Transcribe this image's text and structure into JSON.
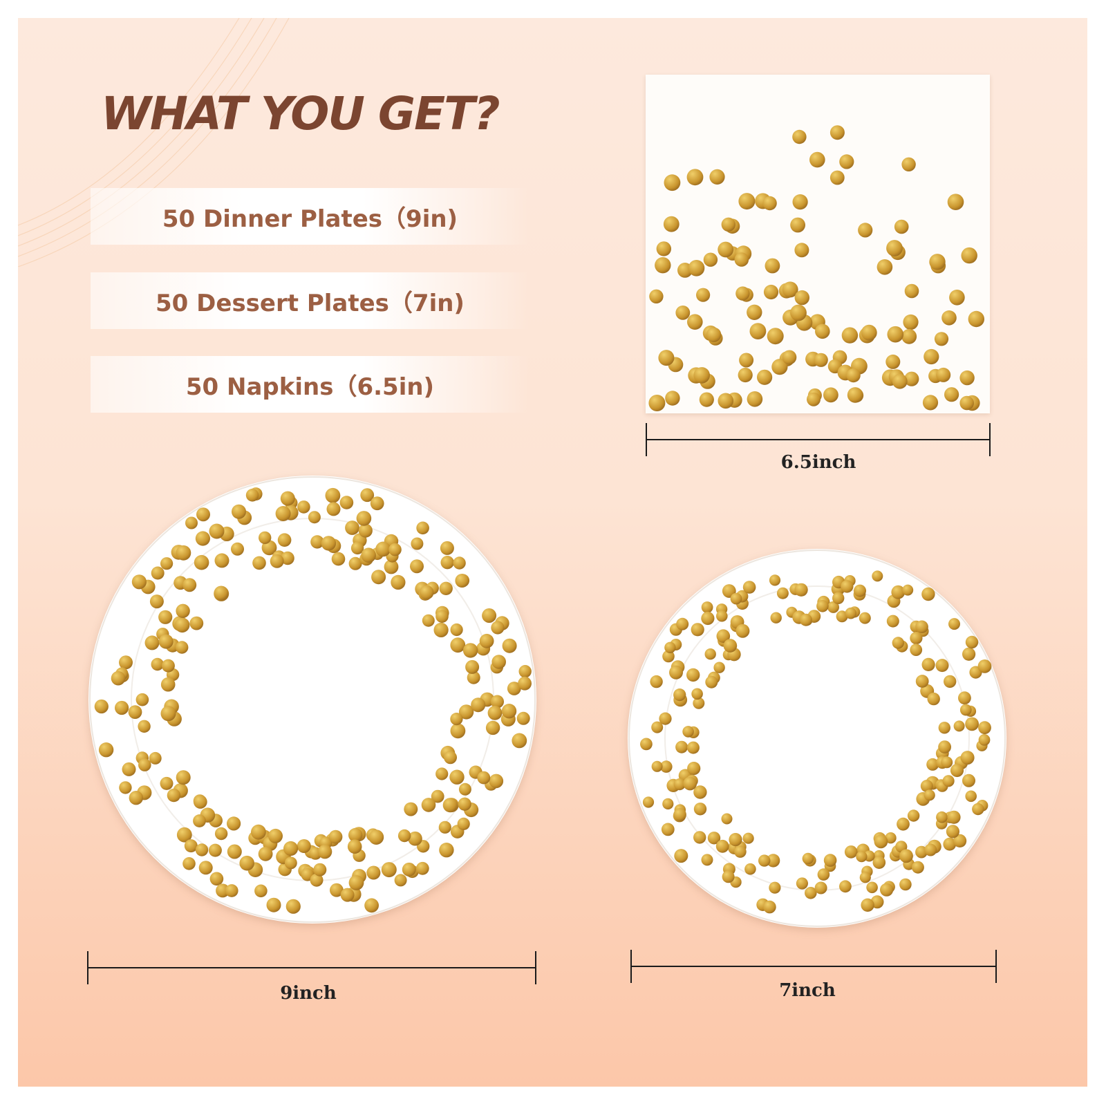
{
  "headline": "WHAT YOU GET?",
  "package_items": [
    {
      "label": "50 Dinner Plates（9in)"
    },
    {
      "label": "50 Dessert Plates（7in)"
    },
    {
      "label": "50 Napkins（6.5in)"
    }
  ],
  "products": {
    "napkin": {
      "size_label": "6.5inch"
    },
    "dinner_plate": {
      "size_label": "9inch"
    },
    "dessert_plate": {
      "size_label": "7inch"
    }
  },
  "colors": {
    "headline": "#7b4530",
    "item_text": "#9c5f43",
    "gold_dot": "#c9952e",
    "gold_dot_highlight": "#f0cf6a",
    "background_top": "#fde9dd",
    "background_bottom": "#fcc7a9"
  }
}
